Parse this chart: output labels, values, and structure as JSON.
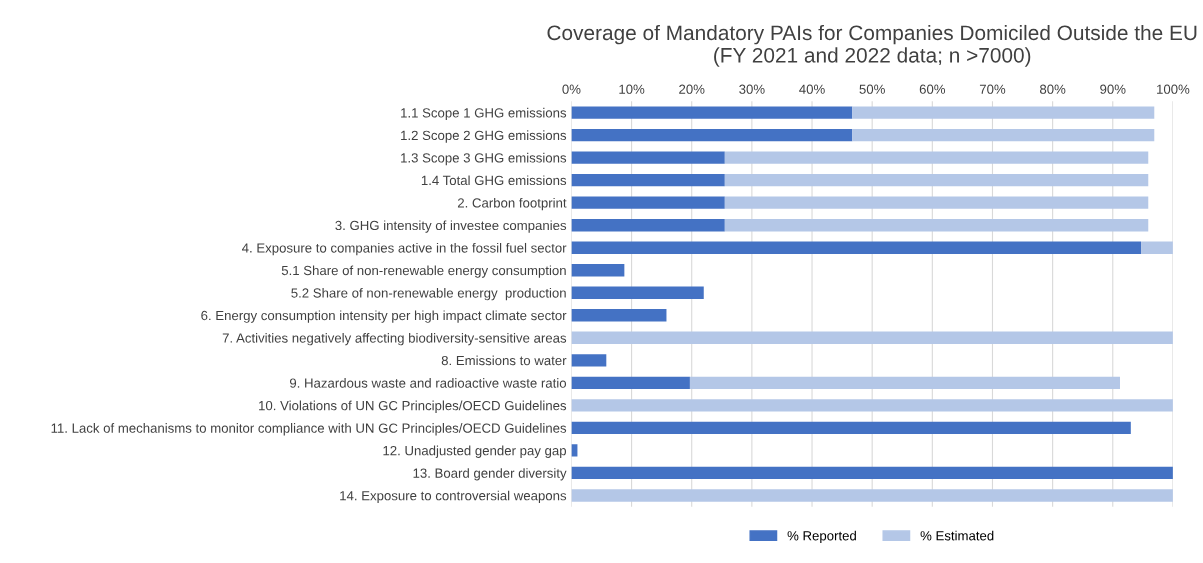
{
  "chart_data": {
    "type": "bar",
    "orientation": "horizontal",
    "stacked": true,
    "title": "Coverage of Mandatory PAIs for Companies Domiciled Outside the EU\n(FY 2021 and 2022 data; n >7000)",
    "categories": [
      "1.1 Scope 1 GHG emissions",
      "1.2 Scope 2 GHG emissions",
      "1.3 Scope 3 GHG emissions",
      "1.4 Total GHG emissions",
      "2. Carbon footprint",
      "3. GHG intensity of investee companies",
      "4. Exposure to companies active in the fossil fuel sector",
      "5.1 Share of non-renewable energy consumption",
      "5.2 Share of non-renewable energy  production",
      "6. Energy consumption intensity per high impact climate sector",
      "7. Activities negatively affecting biodiversity-sensitive areas",
      "8. Emissions to water",
      "9. Hazardous waste and radioactive waste ratio",
      "10. Violations of UN GC Principles/OECD Guidelines",
      "11. Lack of mechanisms to monitor compliance with UN GC Principles/OECD Guidelines",
      "12. Unadjusted gender pay gap",
      "13. Board gender diversity",
      "14. Exposure to controversial weapons"
    ],
    "series": [
      {
        "name": "% Reported",
        "color": "#4472c4",
        "values": [
          46.7,
          46.7,
          25.5,
          25.5,
          25.5,
          25.5,
          94.7,
          8.8,
          22,
          15.8,
          0,
          5.8,
          19.7,
          0,
          93,
          1,
          100,
          0
        ]
      },
      {
        "name": "% Estimated",
        "color": "#b4c7e7",
        "values": [
          50.2,
          50.2,
          70.4,
          70.4,
          70.4,
          70.4,
          5.3,
          0,
          0,
          0,
          100,
          0,
          71.5,
          100,
          0,
          0,
          0,
          100
        ]
      }
    ],
    "xlim": [
      0,
      100
    ],
    "xticks": [
      {
        "value": 0,
        "label": "0%"
      },
      {
        "value": 10,
        "label": "10%"
      },
      {
        "value": 20,
        "label": "20%"
      },
      {
        "value": 30,
        "label": "30%"
      },
      {
        "value": 40,
        "label": "40%"
      },
      {
        "value": 50,
        "label": "50%"
      },
      {
        "value": 60,
        "label": "60%"
      },
      {
        "value": 70,
        "label": "70%"
      },
      {
        "value": 80,
        "label": "80%"
      },
      {
        "value": 90,
        "label": "90%"
      },
      {
        "value": 100,
        "label": "100%"
      }
    ],
    "grid": "x",
    "legend": "bottom"
  }
}
